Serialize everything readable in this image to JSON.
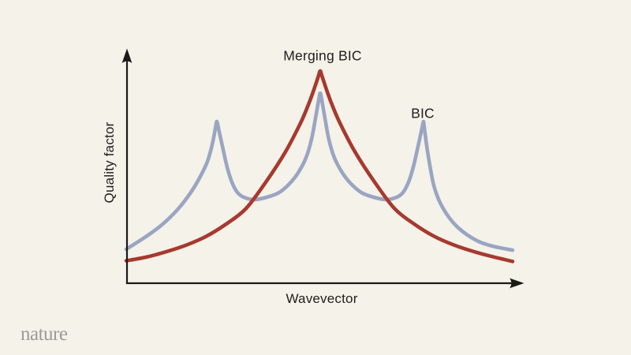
{
  "page": {
    "background_color": "#F4F2E9"
  },
  "branding": {
    "publisher": "nature",
    "logo_color": "#9B9B96"
  },
  "chart_data": {
    "type": "line",
    "title": "",
    "xlabel": "Wavevector",
    "ylabel": "Quality factor",
    "x_ticks": [],
    "y_ticks": [],
    "grid": false,
    "legend_position": "none",
    "axis_style": "arrows-no-ticks",
    "axis_color": "#1A1A18",
    "text_color": "#1E1E1C",
    "annotations": [
      {
        "id": "merging-bic-label",
        "text": "Merging BIC",
        "anchor_x": 0.49,
        "anchor_y": 0.97
      },
      {
        "id": "bic-label",
        "text": "BIC",
        "anchor_x": 0.75,
        "anchor_y": 0.72
      }
    ],
    "x_range_note": "schematic, unlabeled axes; x = fraction of wavevector axis, y = fraction of quality-factor axis height",
    "series": [
      {
        "id": "bic-curve",
        "name": "BIC",
        "color": "#9AA5C2",
        "stroke_width": 4.6,
        "points": [
          [
            -0.002,
            0.145
          ],
          [
            0.048,
            0.199
          ],
          [
            0.088,
            0.249
          ],
          [
            0.127,
            0.313
          ],
          [
            0.161,
            0.387
          ],
          [
            0.185,
            0.455
          ],
          [
            0.203,
            0.519
          ],
          [
            0.213,
            0.576
          ],
          [
            0.22,
            0.63
          ],
          [
            0.225,
            0.677
          ],
          [
            0.227,
            0.69
          ],
          [
            0.23,
            0.67
          ],
          [
            0.235,
            0.63
          ],
          [
            0.243,
            0.569
          ],
          [
            0.253,
            0.495
          ],
          [
            0.265,
            0.431
          ],
          [
            0.279,
            0.387
          ],
          [
            0.295,
            0.367
          ],
          [
            0.321,
            0.357
          ],
          [
            0.353,
            0.367
          ],
          [
            0.384,
            0.387
          ],
          [
            0.41,
            0.424
          ],
          [
            0.432,
            0.471
          ],
          [
            0.452,
            0.535
          ],
          [
            0.466,
            0.613
          ],
          [
            0.476,
            0.704
          ],
          [
            0.484,
            0.781
          ],
          [
            0.488,
            0.811
          ],
          [
            0.492,
            0.781
          ],
          [
            0.5,
            0.704
          ],
          [
            0.51,
            0.613
          ],
          [
            0.524,
            0.535
          ],
          [
            0.544,
            0.471
          ],
          [
            0.566,
            0.424
          ],
          [
            0.592,
            0.387
          ],
          [
            0.623,
            0.367
          ],
          [
            0.655,
            0.357
          ],
          [
            0.681,
            0.367
          ],
          [
            0.697,
            0.387
          ],
          [
            0.711,
            0.431
          ],
          [
            0.723,
            0.495
          ],
          [
            0.733,
            0.569
          ],
          [
            0.741,
            0.63
          ],
          [
            0.746,
            0.67
          ],
          [
            0.749,
            0.69
          ],
          [
            0.751,
            0.663
          ],
          [
            0.757,
            0.586
          ],
          [
            0.765,
            0.502
          ],
          [
            0.775,
            0.417
          ],
          [
            0.789,
            0.35
          ],
          [
            0.807,
            0.296
          ],
          [
            0.829,
            0.249
          ],
          [
            0.857,
            0.209
          ],
          [
            0.888,
            0.178
          ],
          [
            0.924,
            0.158
          ],
          [
            0.974,
            0.141
          ]
        ]
      },
      {
        "id": "merging-bic-curve",
        "name": "Merging BIC",
        "color": "#A7392F",
        "stroke_width": 4.6,
        "points": [
          [
            -0.002,
            0.096
          ],
          [
            0.05,
            0.112
          ],
          [
            0.1,
            0.135
          ],
          [
            0.15,
            0.163
          ],
          [
            0.2,
            0.2
          ],
          [
            0.25,
            0.252
          ],
          [
            0.3,
            0.318
          ],
          [
            0.35,
            0.43
          ],
          [
            0.4,
            0.56
          ],
          [
            0.44,
            0.69
          ],
          [
            0.46,
            0.77
          ],
          [
            0.47,
            0.816
          ],
          [
            0.48,
            0.866
          ],
          [
            0.484,
            0.887
          ],
          [
            0.488,
            0.906
          ],
          [
            0.492,
            0.887
          ],
          [
            0.496,
            0.866
          ],
          [
            0.506,
            0.816
          ],
          [
            0.516,
            0.77
          ],
          [
            0.536,
            0.69
          ],
          [
            0.576,
            0.56
          ],
          [
            0.626,
            0.43
          ],
          [
            0.676,
            0.318
          ],
          [
            0.726,
            0.252
          ],
          [
            0.776,
            0.2
          ],
          [
            0.826,
            0.163
          ],
          [
            0.876,
            0.135
          ],
          [
            0.926,
            0.112
          ],
          [
            0.974,
            0.093
          ]
        ]
      }
    ]
  }
}
